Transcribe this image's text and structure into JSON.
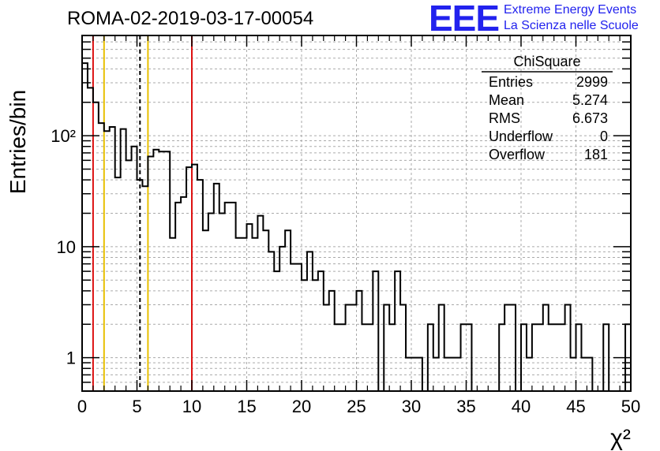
{
  "header": {
    "run_title": "ROMA-02-2019-03-17-00054",
    "logo_text": "EEE",
    "logo_line1": "Extreme Energy Events",
    "logo_line2": "La Scienza nelle Scuole",
    "brand_color": "#2222ee"
  },
  "stats_box": {
    "name": "ChiSquare",
    "rows": [
      {
        "label": "Entries",
        "value": "2999"
      },
      {
        "label": "Mean",
        "value": "5.274"
      },
      {
        "label": "RMS",
        "value": "6.673"
      },
      {
        "label": "Underflow",
        "value": "0"
      },
      {
        "label": "Overflow",
        "value": "181"
      }
    ]
  },
  "chart_data": {
    "type": "histogram",
    "xlabel": "χ²",
    "ylabel": "Entries/bin",
    "xlim": [
      0,
      50
    ],
    "ylim": [
      0.5,
      800
    ],
    "yscale": "log",
    "grid": true,
    "bin_width": 0.5,
    "x_ticks": [
      "0",
      "5",
      "10",
      "15",
      "20",
      "25",
      "30",
      "35",
      "40",
      "45",
      "50"
    ],
    "y_ticks": [
      {
        "value": 1,
        "label": "1"
      },
      {
        "value": 10,
        "label": "10"
      },
      {
        "value": 100,
        "label": "10²"
      }
    ],
    "bin_contents": [
      450,
      270,
      200,
      130,
      110,
      120,
      42,
      115,
      60,
      80,
      40,
      35,
      65,
      75,
      72,
      72,
      12,
      25,
      28,
      52,
      55,
      40,
      14,
      20,
      37,
      20,
      25,
      25,
      12,
      12,
      16,
      12,
      19,
      14,
      9,
      6,
      10,
      14,
      7,
      7,
      5,
      9,
      5,
      6,
      3,
      4,
      2,
      2,
      3,
      3,
      4,
      2,
      2,
      6,
      0.3,
      3,
      2,
      6,
      3,
      1,
      1,
      1,
      0.3,
      2,
      1,
      3,
      1,
      1,
      1,
      2,
      2,
      0.3,
      0.3,
      0.3,
      0.3,
      0.3,
      2,
      3,
      3,
      0.3,
      2,
      1,
      2,
      2,
      3,
      2,
      2,
      2,
      3,
      1,
      2,
      1,
      1,
      0.3,
      0.3,
      2,
      0.3,
      0.3,
      0.3,
      2
    ],
    "vertical_lines": [
      {
        "x": 1.0,
        "color": "#dd1111",
        "style": "solid"
      },
      {
        "x": 2.0,
        "color": "#e8c000",
        "style": "solid"
      },
      {
        "x": 5.274,
        "color": "#000000",
        "style": "dashed"
      },
      {
        "x": 6.0,
        "color": "#e8c000",
        "style": "solid"
      },
      {
        "x": 10.0,
        "color": "#dd1111",
        "style": "solid"
      }
    ]
  }
}
